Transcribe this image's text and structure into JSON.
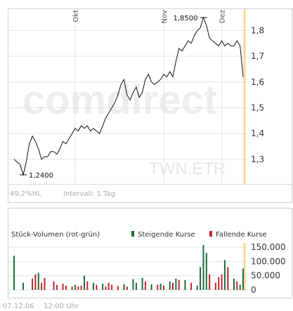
{
  "watermark": {
    "brand": "comdirect",
    "symbol": "TWN.ETR"
  },
  "price_panel": {
    "hl_text": "49,2%HL",
    "interval_text": "Intervall: 1 Tag",
    "high_label": "1,8500",
    "low_label": "1,2400"
  },
  "volume_panel": {
    "title": "Stück-Volumen (rot-grün)",
    "legend_rising": "Steigende Kurse",
    "legend_falling": "Fallende Kurse",
    "color_rising": "#1e6b3c",
    "color_falling": "#c0242c"
  },
  "footer": {
    "date": "07.12.06",
    "time": "12:00 Uhr"
  },
  "chart_data": [
    {
      "type": "line",
      "months": [
        {
          "label": "Okt",
          "index": 20
        },
        {
          "label": "Nov",
          "index": 49
        },
        {
          "label": "Dez",
          "index": 68
        }
      ],
      "y_ticks": [
        "1,3",
        "1,4",
        "1,5",
        "1,6",
        "1,7",
        "1,8"
      ],
      "y_tick_values": [
        1.3,
        1.4,
        1.5,
        1.6,
        1.7,
        1.8
      ],
      "ylim": [
        1.21,
        1.88
      ],
      "high": 1.85,
      "low": 1.24,
      "values": [
        1.3,
        1.29,
        1.28,
        1.24,
        1.29,
        1.36,
        1.39,
        1.37,
        1.34,
        1.3,
        1.31,
        1.31,
        1.33,
        1.33,
        1.32,
        1.34,
        1.37,
        1.36,
        1.38,
        1.4,
        1.42,
        1.41,
        1.43,
        1.42,
        1.43,
        1.41,
        1.42,
        1.41,
        1.4,
        1.43,
        1.46,
        1.48,
        1.5,
        1.52,
        1.55,
        1.59,
        1.61,
        1.55,
        1.53,
        1.56,
        1.58,
        1.54,
        1.56,
        1.61,
        1.63,
        1.6,
        1.59,
        1.6,
        1.61,
        1.63,
        1.62,
        1.64,
        1.62,
        1.68,
        1.73,
        1.72,
        1.74,
        1.76,
        1.75,
        1.78,
        1.8,
        1.81,
        1.85,
        1.82,
        1.77,
        1.76,
        1.75,
        1.74,
        1.76,
        1.74,
        1.75,
        1.74,
        1.74,
        1.76,
        1.74,
        1.62
      ]
    },
    {
      "type": "bar",
      "y_ticks": [
        "0",
        "50.000",
        "100.000",
        "150.000"
      ],
      "y_tick_values": [
        0,
        50000,
        100000,
        150000
      ],
      "ylim": [
        0,
        165000
      ],
      "bars": [
        {
          "i": 0,
          "v": 120000,
          "dir": "up"
        },
        {
          "i": 3,
          "v": 25000,
          "dir": "up"
        },
        {
          "i": 6,
          "v": 40000,
          "dir": "down"
        },
        {
          "i": 7,
          "v": 55000,
          "dir": "down"
        },
        {
          "i": 8,
          "v": 60000,
          "dir": "up"
        },
        {
          "i": 9,
          "v": 25000,
          "dir": "down"
        },
        {
          "i": 10,
          "v": 42000,
          "dir": "down"
        },
        {
          "i": 13,
          "v": 30000,
          "dir": "down"
        },
        {
          "i": 14,
          "v": 18000,
          "dir": "down"
        },
        {
          "i": 16,
          "v": 22000,
          "dir": "down"
        },
        {
          "i": 17,
          "v": 15000,
          "dir": "down"
        },
        {
          "i": 19,
          "v": 12000,
          "dir": "down"
        },
        {
          "i": 20,
          "v": 18000,
          "dir": "up"
        },
        {
          "i": 21,
          "v": 12000,
          "dir": "down"
        },
        {
          "i": 22,
          "v": 15000,
          "dir": "down"
        },
        {
          "i": 23,
          "v": 50000,
          "dir": "up"
        },
        {
          "i": 24,
          "v": 30000,
          "dir": "down"
        },
        {
          "i": 26,
          "v": 25000,
          "dir": "up"
        },
        {
          "i": 27,
          "v": 18000,
          "dir": "down"
        },
        {
          "i": 29,
          "v": 22000,
          "dir": "up"
        },
        {
          "i": 30,
          "v": 12000,
          "dir": "down"
        },
        {
          "i": 31,
          "v": 25000,
          "dir": "down"
        },
        {
          "i": 32,
          "v": 18000,
          "dir": "down"
        },
        {
          "i": 34,
          "v": 14000,
          "dir": "down"
        },
        {
          "i": 36,
          "v": 20000,
          "dir": "up"
        },
        {
          "i": 37,
          "v": 12000,
          "dir": "down"
        },
        {
          "i": 39,
          "v": 38000,
          "dir": "up"
        },
        {
          "i": 40,
          "v": 25000,
          "dir": "up"
        },
        {
          "i": 42,
          "v": 42000,
          "dir": "up"
        },
        {
          "i": 43,
          "v": 30000,
          "dir": "down"
        },
        {
          "i": 45,
          "v": 20000,
          "dir": "up"
        },
        {
          "i": 47,
          "v": 18000,
          "dir": "down"
        },
        {
          "i": 48,
          "v": 22000,
          "dir": "up"
        },
        {
          "i": 49,
          "v": 15000,
          "dir": "down"
        },
        {
          "i": 51,
          "v": 30000,
          "dir": "up"
        },
        {
          "i": 52,
          "v": 25000,
          "dir": "down"
        },
        {
          "i": 53,
          "v": 40000,
          "dir": "up"
        },
        {
          "i": 54,
          "v": 35000,
          "dir": "down"
        },
        {
          "i": 56,
          "v": 35000,
          "dir": "up"
        },
        {
          "i": 58,
          "v": 25000,
          "dir": "down"
        },
        {
          "i": 60,
          "v": 15000,
          "dir": "up"
        },
        {
          "i": 61,
          "v": 80000,
          "dir": "up"
        },
        {
          "i": 62,
          "v": 158000,
          "dir": "up"
        },
        {
          "i": 63,
          "v": 130000,
          "dir": "up"
        },
        {
          "i": 64,
          "v": 55000,
          "dir": "down"
        },
        {
          "i": 66,
          "v": 25000,
          "dir": "down"
        },
        {
          "i": 67,
          "v": 45000,
          "dir": "down"
        },
        {
          "i": 68,
          "v": 55000,
          "dir": "down"
        },
        {
          "i": 69,
          "v": 105000,
          "dir": "up"
        },
        {
          "i": 70,
          "v": 80000,
          "dir": "down"
        },
        {
          "i": 72,
          "v": 40000,
          "dir": "up"
        },
        {
          "i": 73,
          "v": 30000,
          "dir": "down"
        },
        {
          "i": 74,
          "v": 18000,
          "dir": "up"
        },
        {
          "i": 75,
          "v": 75000,
          "dir": "up"
        }
      ]
    }
  ]
}
